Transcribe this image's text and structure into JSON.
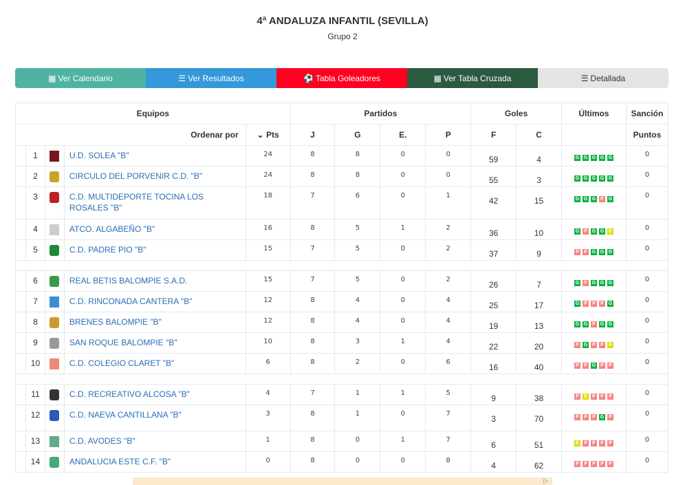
{
  "header": {
    "title": "4ª ANDALUZA INFANTIL (SEVILLA)",
    "subtitle": "Grupo 2"
  },
  "nav": [
    {
      "label": "Ver Calendario",
      "icon": "calendar-icon",
      "glyph": "▦",
      "color": "#4fb3a1"
    },
    {
      "label": "Ver Resultados",
      "icon": "list-icon",
      "glyph": "☰",
      "color": "#3498db"
    },
    {
      "label": "Tabla Goleadores",
      "icon": "soccer-ball-icon",
      "glyph": "⚽",
      "color": "#ff0021"
    },
    {
      "label": "Ver Tabla Cruzada",
      "icon": "calculator-icon",
      "glyph": "▦",
      "color": "#2b5a40"
    },
    {
      "label": "Detallada",
      "icon": "indent-icon",
      "glyph": "☰",
      "color": "#e4e4e4"
    }
  ],
  "table": {
    "groups": {
      "equipos": "Equipos",
      "partidos": "Partidos",
      "goles": "Goles",
      "ultimos": "Últimos",
      "sancion": "Sanción"
    },
    "sort_label": "Ordenar por",
    "pts": "Pts",
    "j": "J",
    "g": "G",
    "e": "E.",
    "p": "P",
    "f": "F",
    "c": "C",
    "puntos": "Puntos",
    "result_colors": {
      "G": "#0bb13e",
      "P": "#f88282",
      "E": "#d6df00"
    },
    "rows": [
      {
        "pos": "1",
        "name": "U.D. SOLEA \"B\"",
        "pts": "24",
        "j": "8",
        "g": "8",
        "e": "0",
        "p": "0",
        "f": "59",
        "c": "4",
        "last": [
          "G",
          "G",
          "G",
          "G",
          "G"
        ],
        "sancion": "0"
      },
      {
        "pos": "2",
        "name": "CIRCULO DEL PORVENIR C.D. \"B\"",
        "pts": "24",
        "j": "8",
        "g": "8",
        "e": "0",
        "p": "0",
        "f": "55",
        "c": "3",
        "last": [
          "G",
          "G",
          "G",
          "G",
          "G"
        ],
        "sancion": "0"
      },
      {
        "pos": "3",
        "name": "C.D. MULTIDEPORTE TOCINA LOS ROSALES \"B\"",
        "pts": "18",
        "j": "7",
        "g": "6",
        "e": "0",
        "p": "1",
        "f": "42",
        "c": "15",
        "last": [
          "G",
          "G",
          "G",
          "P",
          "G"
        ],
        "sancion": "0"
      },
      {
        "pos": "4",
        "name": "ATCO. ALGABEÑO \"B\"",
        "pts": "16",
        "j": "8",
        "g": "5",
        "e": "1",
        "p": "2",
        "f": "36",
        "c": "10",
        "last": [
          "G",
          "P",
          "G",
          "G",
          "E"
        ],
        "sancion": "0"
      },
      {
        "pos": "5",
        "name": "C.D. PADRE PIO \"B\"",
        "pts": "15",
        "j": "7",
        "g": "5",
        "e": "0",
        "p": "2",
        "f": "37",
        "c": "9",
        "last": [
          "P",
          "P",
          "G",
          "G",
          "G"
        ],
        "sancion": "0"
      },
      {
        "pos": "6",
        "name": "REAL BETIS BALOMPIE S.A.D.",
        "pts": "15",
        "j": "7",
        "g": "5",
        "e": "0",
        "p": "2",
        "f": "26",
        "c": "7",
        "last": [
          "G",
          "P",
          "G",
          "G",
          "G"
        ],
        "sancion": "0"
      },
      {
        "pos": "7",
        "name": "C.D. RINCONADA CANTERA \"B\"",
        "pts": "12",
        "j": "8",
        "g": "4",
        "e": "0",
        "p": "4",
        "f": "25",
        "c": "17",
        "last": [
          "G",
          "P",
          "P",
          "P",
          "G"
        ],
        "sancion": "0"
      },
      {
        "pos": "8",
        "name": "BRENES BALOMPIE \"B\"",
        "pts": "12",
        "j": "8",
        "g": "4",
        "e": "0",
        "p": "4",
        "f": "19",
        "c": "13",
        "last": [
          "G",
          "G",
          "P",
          "G",
          "G"
        ],
        "sancion": "0"
      },
      {
        "pos": "9",
        "name": "SAN ROQUE BALOMPIE \"B\"",
        "pts": "10",
        "j": "8",
        "g": "3",
        "e": "1",
        "p": "4",
        "f": "22",
        "c": "20",
        "last": [
          "P",
          "G",
          "P",
          "P",
          "E"
        ],
        "sancion": "0"
      },
      {
        "pos": "10",
        "name": "C.D. COLEGIO CLARET \"B\"",
        "pts": "6",
        "j": "8",
        "g": "2",
        "e": "0",
        "p": "6",
        "f": "16",
        "c": "40",
        "last": [
          "P",
          "P",
          "G",
          "P",
          "P"
        ],
        "sancion": "0"
      },
      {
        "pos": "11",
        "name": "C.D. RECREATIVO ALCOSA \"B\"",
        "pts": "4",
        "j": "7",
        "g": "1",
        "e": "1",
        "p": "5",
        "f": "9",
        "c": "38",
        "last": [
          "P",
          "E",
          "P",
          "P",
          "P"
        ],
        "sancion": "0"
      },
      {
        "pos": "12",
        "name": "C.D. NAEVA CANTILLANA \"B\"",
        "pts": "3",
        "j": "8",
        "g": "1",
        "e": "0",
        "p": "7",
        "f": "3",
        "c": "70",
        "last": [
          "P",
          "P",
          "P",
          "G",
          "P"
        ],
        "sancion": "0"
      },
      {
        "pos": "13",
        "name": "C.D. AVODES \"B\"",
        "pts": "1",
        "j": "8",
        "g": "0",
        "e": "1",
        "p": "7",
        "f": "6",
        "c": "51",
        "last": [
          "E",
          "P",
          "P",
          "P",
          "P"
        ],
        "sancion": "0"
      },
      {
        "pos": "14",
        "name": "ANDALUCIA ESTE C.F. \"B\"",
        "pts": "0",
        "j": "8",
        "g": "0",
        "e": "0",
        "p": "8",
        "f": "4",
        "c": "62",
        "last": [
          "P",
          "P",
          "P",
          "P",
          "P"
        ],
        "sancion": "0"
      }
    ]
  }
}
